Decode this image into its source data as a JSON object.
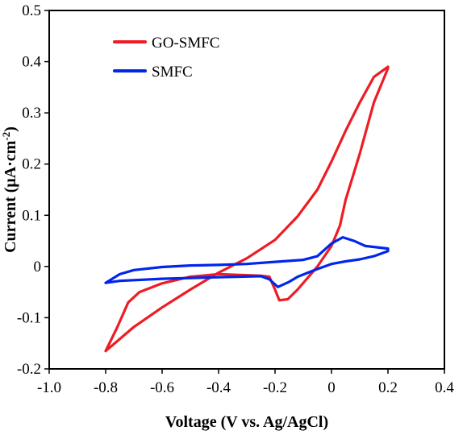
{
  "chart_data": {
    "type": "line",
    "title": "",
    "xlabel": "Voltage (V vs. Ag/AgCl)",
    "ylabel": {
      "main": "Current (μA·cm",
      "superscript": "-2",
      "close": ")"
    },
    "xlim": [
      -1.0,
      0.4
    ],
    "ylim": [
      -0.2,
      0.5
    ],
    "x_ticks": [
      -1.0,
      -0.8,
      -0.6,
      -0.4,
      -0.2,
      0,
      0.2,
      0.4
    ],
    "x_tick_labels": [
      "-1.0",
      "-0.8",
      "-0.6",
      "-0.4",
      "-0.2",
      "0",
      "0.2",
      "0.4"
    ],
    "y_ticks": [
      -0.2,
      -0.1,
      0,
      0.1,
      0.2,
      0.3,
      0.4,
      0.5
    ],
    "y_tick_labels": [
      "-0.2",
      "-0.1",
      "0",
      "0.1",
      "0.2",
      "0.3",
      "0.4",
      "0.5"
    ],
    "grid": false,
    "legend_position": "top-left",
    "series": [
      {
        "name": "GO-SMFC",
        "color": "#ee1c24",
        "x": [
          -0.8,
          -0.7,
          -0.6,
          -0.5,
          -0.4,
          -0.3,
          -0.2,
          -0.12,
          -0.05,
          0.0,
          0.05,
          0.1,
          0.15,
          0.2,
          0.2,
          0.15,
          0.1,
          0.05,
          0.03,
          0.0,
          -0.05,
          -0.12,
          -0.155,
          -0.185,
          -0.2,
          -0.22,
          -0.25,
          -0.4,
          -0.5,
          -0.6,
          -0.68,
          -0.72,
          -0.76,
          -0.8
        ],
        "y": [
          -0.165,
          -0.118,
          -0.08,
          -0.045,
          -0.012,
          0.016,
          0.052,
          0.098,
          0.15,
          0.205,
          0.265,
          0.32,
          0.37,
          0.39,
          0.387,
          0.32,
          0.22,
          0.13,
          0.08,
          0.04,
          0.0,
          -0.045,
          -0.064,
          -0.066,
          -0.045,
          -0.02,
          -0.018,
          -0.015,
          -0.02,
          -0.033,
          -0.05,
          -0.07,
          -0.12,
          -0.165
        ]
      },
      {
        "name": "SMFC",
        "color": "#0026ec",
        "x": [
          -0.8,
          -0.75,
          -0.7,
          -0.6,
          -0.5,
          -0.4,
          -0.3,
          -0.2,
          -0.1,
          -0.05,
          0.0,
          0.04,
          0.08,
          0.12,
          0.2,
          0.2,
          0.15,
          0.1,
          0.05,
          0.0,
          -0.05,
          -0.12,
          -0.15,
          -0.19,
          -0.22,
          -0.25,
          -0.4,
          -0.6,
          -0.75,
          -0.8
        ],
        "y": [
          -0.032,
          -0.015,
          -0.007,
          -0.001,
          0.002,
          0.003,
          0.005,
          0.009,
          0.013,
          0.02,
          0.045,
          0.057,
          0.05,
          0.04,
          0.035,
          0.03,
          0.02,
          0.014,
          0.01,
          0.005,
          -0.005,
          -0.02,
          -0.03,
          -0.04,
          -0.025,
          -0.019,
          -0.021,
          -0.024,
          -0.028,
          -0.032
        ]
      }
    ]
  }
}
